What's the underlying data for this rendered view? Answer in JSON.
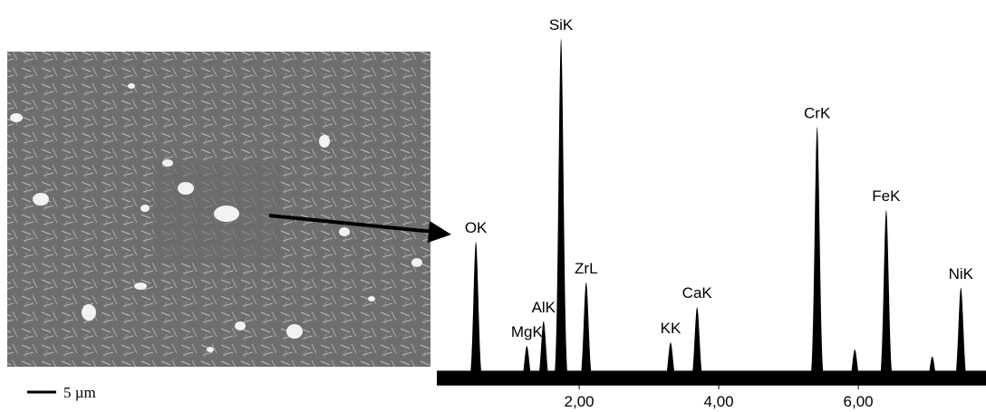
{
  "chart_data": {
    "type": "spectrum",
    "scale_bar": "5 µm",
    "xlim": [
      -0.04,
      7.83
    ],
    "ylim": [
      0,
      100
    ],
    "xticks": [
      {
        "value": 2,
        "label": "2,00"
      },
      {
        "value": 4,
        "label": "4,00"
      },
      {
        "value": 6,
        "label": "6,00"
      }
    ],
    "background": 4,
    "color": "#000000",
    "peaks": [
      {
        "label": "OK",
        "energy": 0.52,
        "counts": 40.5
      },
      {
        "label": "MgK",
        "energy": 1.25,
        "counts": 11
      },
      {
        "label": "AlK",
        "energy": 1.49,
        "counts": 18
      },
      {
        "label": "SiK",
        "energy": 1.74,
        "counts": 98
      },
      {
        "label": "ZrL",
        "energy": 2.1,
        "counts": 29
      },
      {
        "label": "KK",
        "energy": 3.31,
        "counts": 12
      },
      {
        "label": "CaK",
        "energy": 3.69,
        "counts": 22
      },
      {
        "label": "CrK",
        "energy": 5.41,
        "counts": 73
      },
      {
        "label": null,
        "energy": 5.95,
        "counts": 10
      },
      {
        "label": "FeK",
        "energy": 6.4,
        "counts": 49.5
      },
      {
        "label": null,
        "energy": 7.06,
        "counts": 8
      },
      {
        "label": "NiK",
        "energy": 7.47,
        "counts": 27.5
      }
    ]
  }
}
